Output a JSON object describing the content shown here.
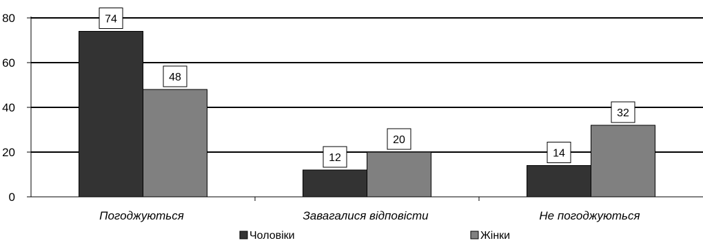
{
  "chart_data": {
    "type": "bar",
    "title": "",
    "xlabel": "",
    "ylabel": "",
    "categories": [
      "Погоджуються",
      "Завагалися відповісти",
      "Не погоджуються"
    ],
    "series": [
      {
        "name": "Чоловіки",
        "values": [
          74,
          12,
          14
        ],
        "color": "#333333"
      },
      {
        "name": "Жінки",
        "values": [
          48,
          20,
          32
        ],
        "color": "#808080"
      }
    ],
    "ylim": [
      0,
      80
    ],
    "yticks": [
      0,
      20,
      40,
      60,
      80
    ],
    "grid": true,
    "data_labels": true,
    "legend_position": "bottom"
  }
}
